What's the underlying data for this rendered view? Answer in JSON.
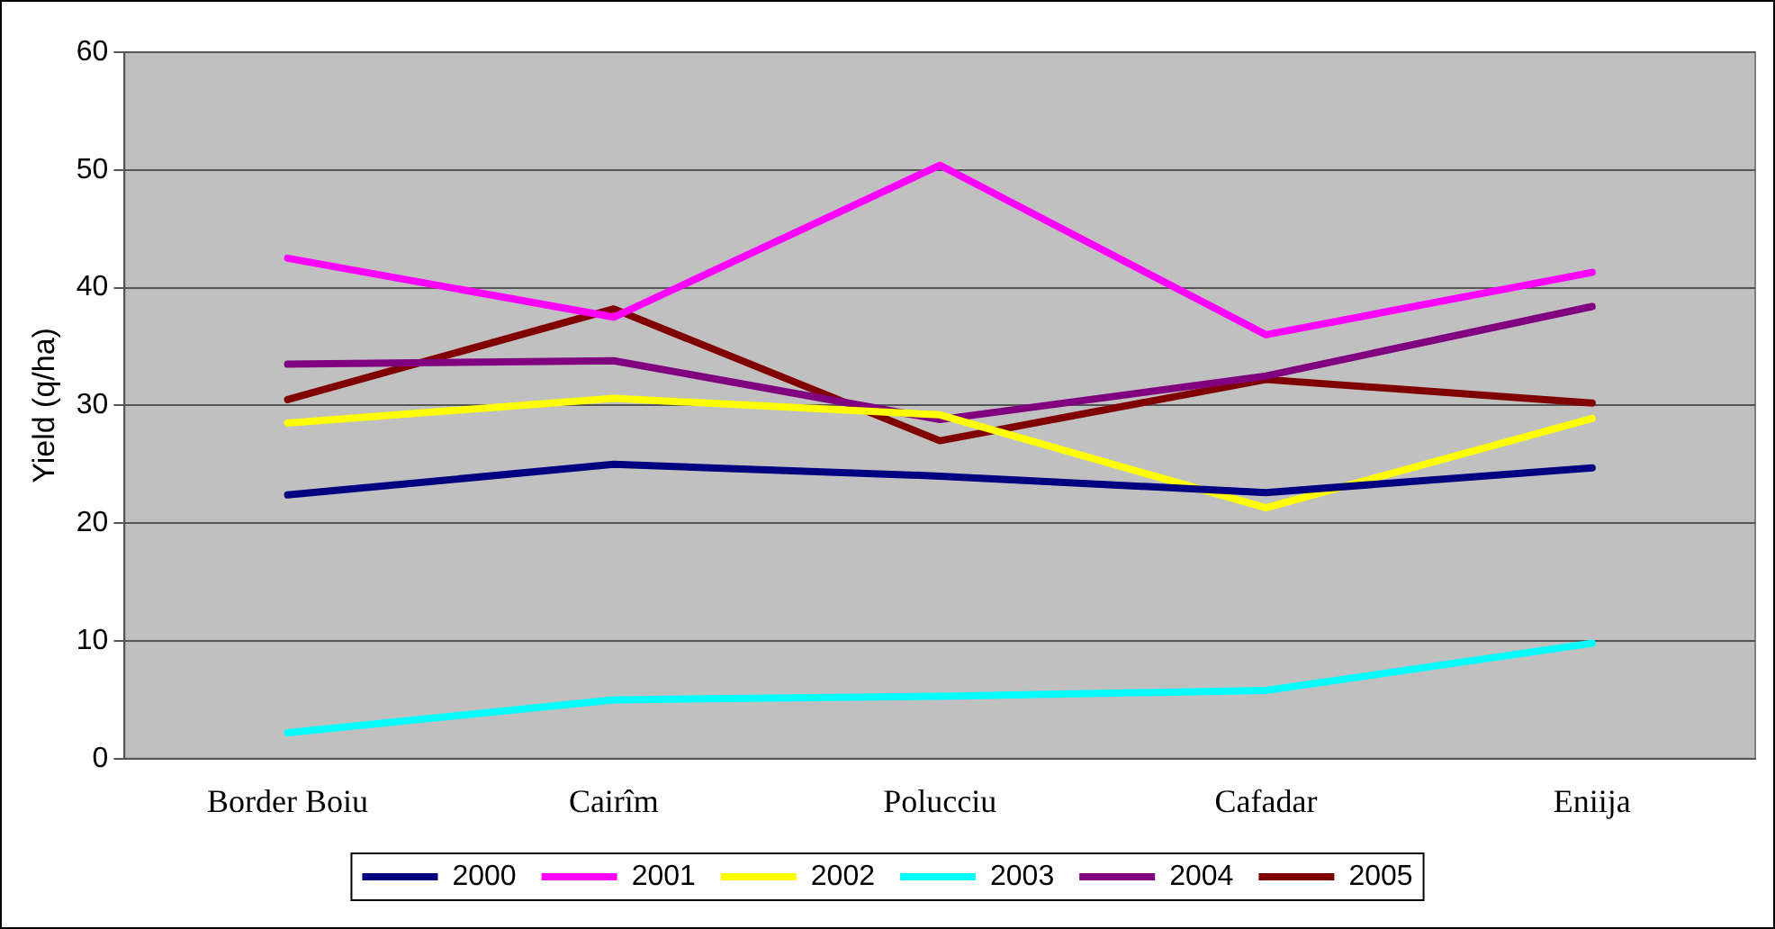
{
  "chart_data": {
    "type": "line",
    "ylabel": "Yield (q/ha)",
    "categories": [
      "Border Boiu",
      "Cairîm",
      "Polucciu",
      "Cafadar",
      "Eniija"
    ],
    "ylim": [
      0,
      60
    ],
    "yticks": [
      0,
      10,
      20,
      30,
      40,
      50,
      60
    ],
    "grid": "y",
    "legend": "bottom",
    "marker": "none",
    "series": [
      {
        "name": "2000",
        "color": "#000080",
        "values": [
          22.4,
          25,
          24,
          22.6,
          24.7
        ]
      },
      {
        "name": "2001",
        "color": "#ff00ff",
        "values": [
          42.5,
          37.5,
          50.4,
          36,
          41.3
        ]
      },
      {
        "name": "2002",
        "color": "#ffff00",
        "values": [
          28.5,
          30.6,
          29.2,
          21.3,
          28.9
        ]
      },
      {
        "name": "2003",
        "color": "#00ffff",
        "values": [
          2.2,
          5,
          5.3,
          5.8,
          9.8
        ]
      },
      {
        "name": "2004",
        "color": "#800080",
        "values": [
          33.5,
          33.8,
          28.8,
          32.5,
          38.4
        ]
      },
      {
        "name": "2005",
        "color": "#800000",
        "values": [
          30.5,
          38.2,
          27,
          32.2,
          30.2
        ]
      }
    ]
  }
}
